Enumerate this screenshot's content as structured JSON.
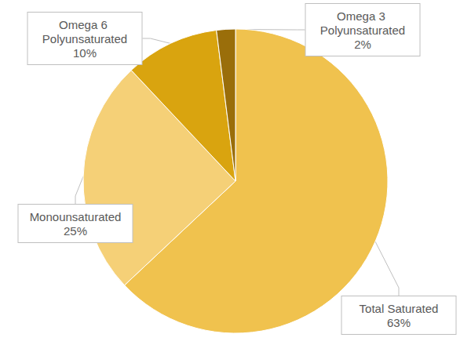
{
  "chart_data": {
    "type": "pie",
    "categories": [
      "Total Saturated",
      "Monounsaturated",
      "Omega 6 Polyunsaturated",
      "Omega 3 Polyunsaturated"
    ],
    "values": [
      63,
      25,
      10,
      2
    ],
    "value_labels": [
      "63%",
      "25%",
      "10%",
      "2%"
    ],
    "colors": [
      "#f0c24e",
      "#f5d077",
      "#d9a40f",
      "#9a6e0a"
    ],
    "data_labels": true
  }
}
